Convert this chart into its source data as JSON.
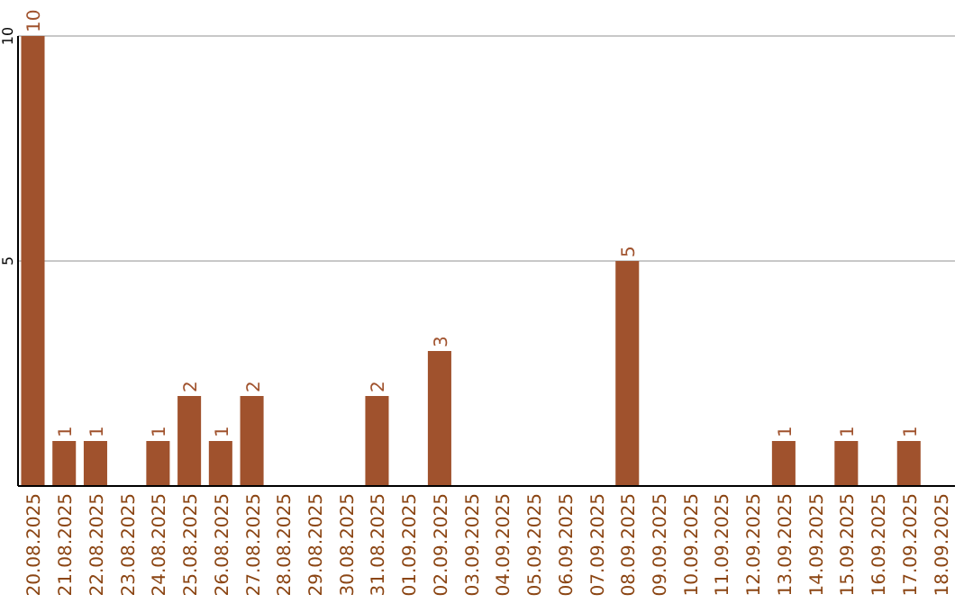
{
  "chart_data": {
    "type": "bar",
    "categories": [
      "20.08.2025",
      "21.08.2025",
      "22.08.2025",
      "23.08.2025",
      "24.08.2025",
      "25.08.2025",
      "26.08.2025",
      "27.08.2025",
      "28.08.2025",
      "29.08.2025",
      "30.08.2025",
      "31.08.2025",
      "01.09.2025",
      "02.09.2025",
      "03.09.2025",
      "04.09.2025",
      "05.09.2025",
      "06.09.2025",
      "07.09.2025",
      "08.09.2025",
      "09.09.2025",
      "10.09.2025",
      "11.09.2025",
      "12.09.2025",
      "13.09.2025",
      "14.09.2025",
      "15.09.2025",
      "16.09.2025",
      "17.09.2025",
      "18.09.2025"
    ],
    "values": [
      10,
      1,
      1,
      0,
      1,
      2,
      1,
      2,
      0,
      0,
      0,
      2,
      0,
      3,
      0,
      0,
      0,
      0,
      0,
      5,
      0,
      0,
      0,
      0,
      1,
      0,
      1,
      0,
      1,
      0
    ],
    "value_labels": [
      "10",
      "1",
      "1",
      null,
      "1",
      "2",
      "1",
      "2",
      null,
      null,
      null,
      "2",
      null,
      "3",
      null,
      null,
      null,
      null,
      null,
      "5",
      null,
      null,
      null,
      null,
      "1",
      null,
      "1",
      null,
      "1",
      null
    ],
    "color": "#a0522d",
    "ylim": [
      0,
      10
    ],
    "yticks": [
      5,
      10
    ],
    "grid": "y"
  }
}
